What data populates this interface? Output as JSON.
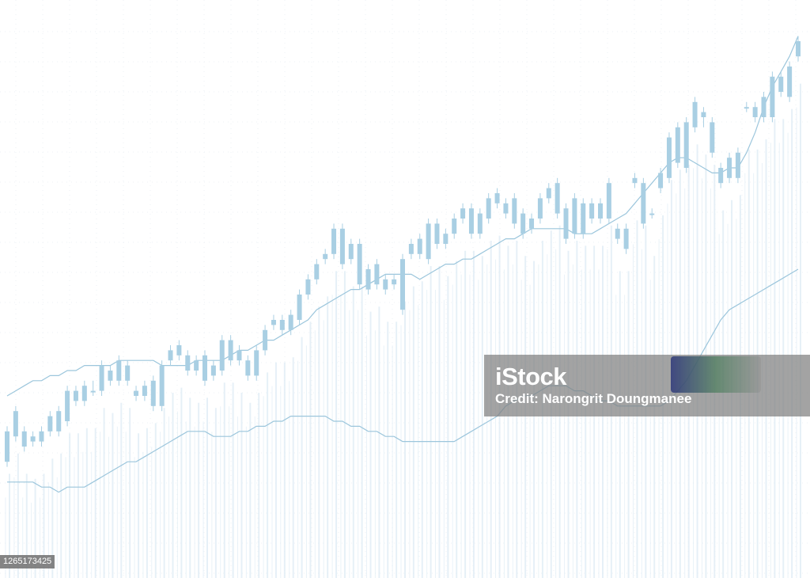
{
  "chart_data": {
    "type": "candlestick",
    "title": "",
    "xlabel": "",
    "ylabel": "",
    "grid": true,
    "axes_visible": false,
    "x": [
      1,
      2,
      3,
      4,
      5,
      6,
      7,
      8,
      9,
      10,
      11,
      12,
      13,
      14,
      15,
      16,
      17,
      18,
      19,
      20,
      21,
      22,
      23,
      24,
      25,
      26,
      27,
      28,
      29,
      30,
      31,
      32,
      33,
      34,
      35,
      36,
      37,
      38,
      39,
      40,
      41,
      42,
      43,
      44,
      45,
      46,
      47,
      48,
      49,
      50,
      51,
      52,
      53,
      54,
      55,
      56,
      57,
      58,
      59,
      60,
      61,
      62,
      63,
      64,
      65,
      66,
      67,
      68,
      69,
      70,
      71,
      72,
      73,
      74,
      75,
      76,
      77,
      78,
      79,
      80,
      81,
      82,
      83,
      84,
      85,
      86,
      87,
      88,
      89,
      90,
      91,
      92,
      93
    ],
    "ylim": [
      0,
      100
    ],
    "series": [
      {
        "open": [
          12,
          22,
          18,
          17,
          16,
          18,
          22,
          20,
          26,
          24,
          26,
          26,
          30,
          28,
          31,
          26,
          25,
          28,
          23,
          32,
          35,
          33,
          30,
          33,
          29,
          30,
          36,
          34,
          32,
          29,
          34,
          39,
          40,
          38,
          40,
          45,
          48,
          52,
          58,
          58,
          52,
          55,
          46,
          51,
          48,
          47,
          42,
          53,
          56,
          52,
          59,
          55,
          57,
          60,
          62,
          57,
          60,
          65,
          63,
          64,
          61,
          58,
          60,
          64,
          61,
          56,
          64,
          57,
          63,
          60,
          60,
          56,
          58,
          67,
          59,
          61,
          66,
          68,
          78,
          70,
          78,
          80,
          79,
          70,
          72,
          68,
          82,
          80,
          84,
          80,
          88,
          84,
          92
        ],
        "close": [
          18,
          17,
          15,
          16,
          18,
          21,
          18,
          26,
          24,
          27,
          26,
          31,
          28,
          32,
          28,
          25,
          27,
          23,
          31,
          34,
          33,
          30,
          32,
          28,
          31,
          36,
          32,
          32,
          29,
          34,
          38,
          40,
          38,
          41,
          45,
          48,
          51,
          53,
          53,
          51,
          55,
          47,
          50,
          47,
          46,
          48,
          52,
          55,
          53,
          59,
          55,
          57,
          60,
          62,
          57,
          61,
          64,
          63,
          61,
          59,
          57,
          60,
          64,
          66,
          67,
          62,
          57,
          63,
          60,
          63,
          67,
          58,
          54,
          68,
          67,
          61,
          69,
          76,
          71,
          79,
          83,
          81,
          73,
          67,
          68,
          73,
          82,
          82,
          80,
          88,
          85,
          90,
          95
        ],
        "high": [
          19,
          23,
          19,
          18,
          19,
          22,
          23,
          27,
          27,
          28,
          28,
          32,
          31,
          33,
          32,
          27,
          28,
          29,
          32,
          35,
          36,
          34,
          33,
          34,
          32,
          37,
          37,
          35,
          33,
          35,
          39,
          41,
          41,
          42,
          46,
          49,
          52,
          54,
          59,
          59,
          56,
          56,
          51,
          52,
          49,
          49,
          53,
          56,
          57,
          60,
          60,
          58,
          61,
          63,
          63,
          62,
          65,
          66,
          64,
          65,
          62,
          61,
          65,
          67,
          68,
          63,
          65,
          64,
          64,
          64,
          68,
          59,
          59,
          69,
          68,
          62,
          70,
          77,
          79,
          80,
          84,
          82,
          80,
          71,
          73,
          74,
          83,
          83,
          85,
          89,
          89,
          91,
          96
        ],
        "low": [
          11,
          16,
          14,
          15,
          15,
          17,
          17,
          19,
          23,
          23,
          25,
          25,
          27,
          27,
          27,
          24,
          24,
          22,
          22,
          31,
          32,
          29,
          29,
          27,
          28,
          29,
          31,
          31,
          28,
          28,
          33,
          38,
          37,
          37,
          39,
          44,
          47,
          51,
          52,
          50,
          51,
          46,
          45,
          46,
          45,
          46,
          41,
          52,
          52,
          51,
          54,
          54,
          56,
          59,
          56,
          56,
          59,
          62,
          60,
          58,
          56,
          57,
          59,
          63,
          60,
          55,
          56,
          56,
          59,
          59,
          59,
          55,
          53,
          66,
          58,
          60,
          65,
          67,
          70,
          69,
          77,
          78,
          72,
          66,
          67,
          67,
          81,
          79,
          79,
          79,
          84,
          83,
          91
        ]
      },
      {
        "name": "",
        "type": "line",
        "values": [
          25,
          26,
          27,
          28,
          28,
          29,
          29,
          30,
          30,
          31,
          31,
          31,
          31,
          32,
          32,
          32,
          32,
          32,
          31,
          31,
          31,
          31,
          32,
          32,
          32,
          32,
          33,
          34,
          34,
          35,
          36,
          36,
          37,
          38,
          39,
          40,
          42,
          43,
          44,
          45,
          46,
          46,
          47,
          48,
          49,
          49,
          49,
          49,
          48,
          49,
          50,
          51,
          51,
          52,
          52,
          53,
          54,
          55,
          56,
          56,
          57,
          58,
          58,
          58,
          58,
          58,
          57,
          57,
          57,
          58,
          59,
          60,
          61,
          63,
          65,
          67,
          69,
          71,
          72,
          72,
          71,
          70,
          69,
          69,
          70,
          70,
          73,
          77,
          82,
          86,
          89,
          92,
          96
        ]
      },
      {
        "name": "",
        "type": "line",
        "values": [
          8,
          8,
          8,
          8,
          7,
          7,
          6,
          7,
          7,
          7,
          8,
          9,
          10,
          11,
          12,
          12,
          13,
          14,
          15,
          16,
          17,
          18,
          18,
          18,
          17,
          17,
          17,
          18,
          18,
          19,
          19,
          20,
          20,
          21,
          21,
          21,
          21,
          21,
          20,
          20,
          19,
          19,
          18,
          18,
          17,
          17,
          16,
          16,
          16,
          16,
          16,
          16,
          16,
          17,
          18,
          19,
          20,
          21,
          23,
          24,
          25,
          25,
          26,
          27,
          27,
          27,
          26,
          26,
          25,
          24,
          24,
          23,
          23,
          23,
          23,
          23,
          23,
          24,
          26,
          28,
          31,
          34,
          37,
          40,
          42,
          43,
          44,
          45,
          46,
          47,
          48,
          49,
          50
        ]
      }
    ]
  },
  "watermark": {
    "brand": "iStock",
    "credit": "Credit: Narongrit Doungmanee",
    "image_id": "1265173425",
    "logo_icon": "gettyimages-logo-icon"
  },
  "colors": {
    "candle": "#a9cfe3",
    "candle_faint": "#dcebf4",
    "line": "#9cc6dc",
    "grid": "#edf2f6",
    "background": "#ffffff"
  }
}
